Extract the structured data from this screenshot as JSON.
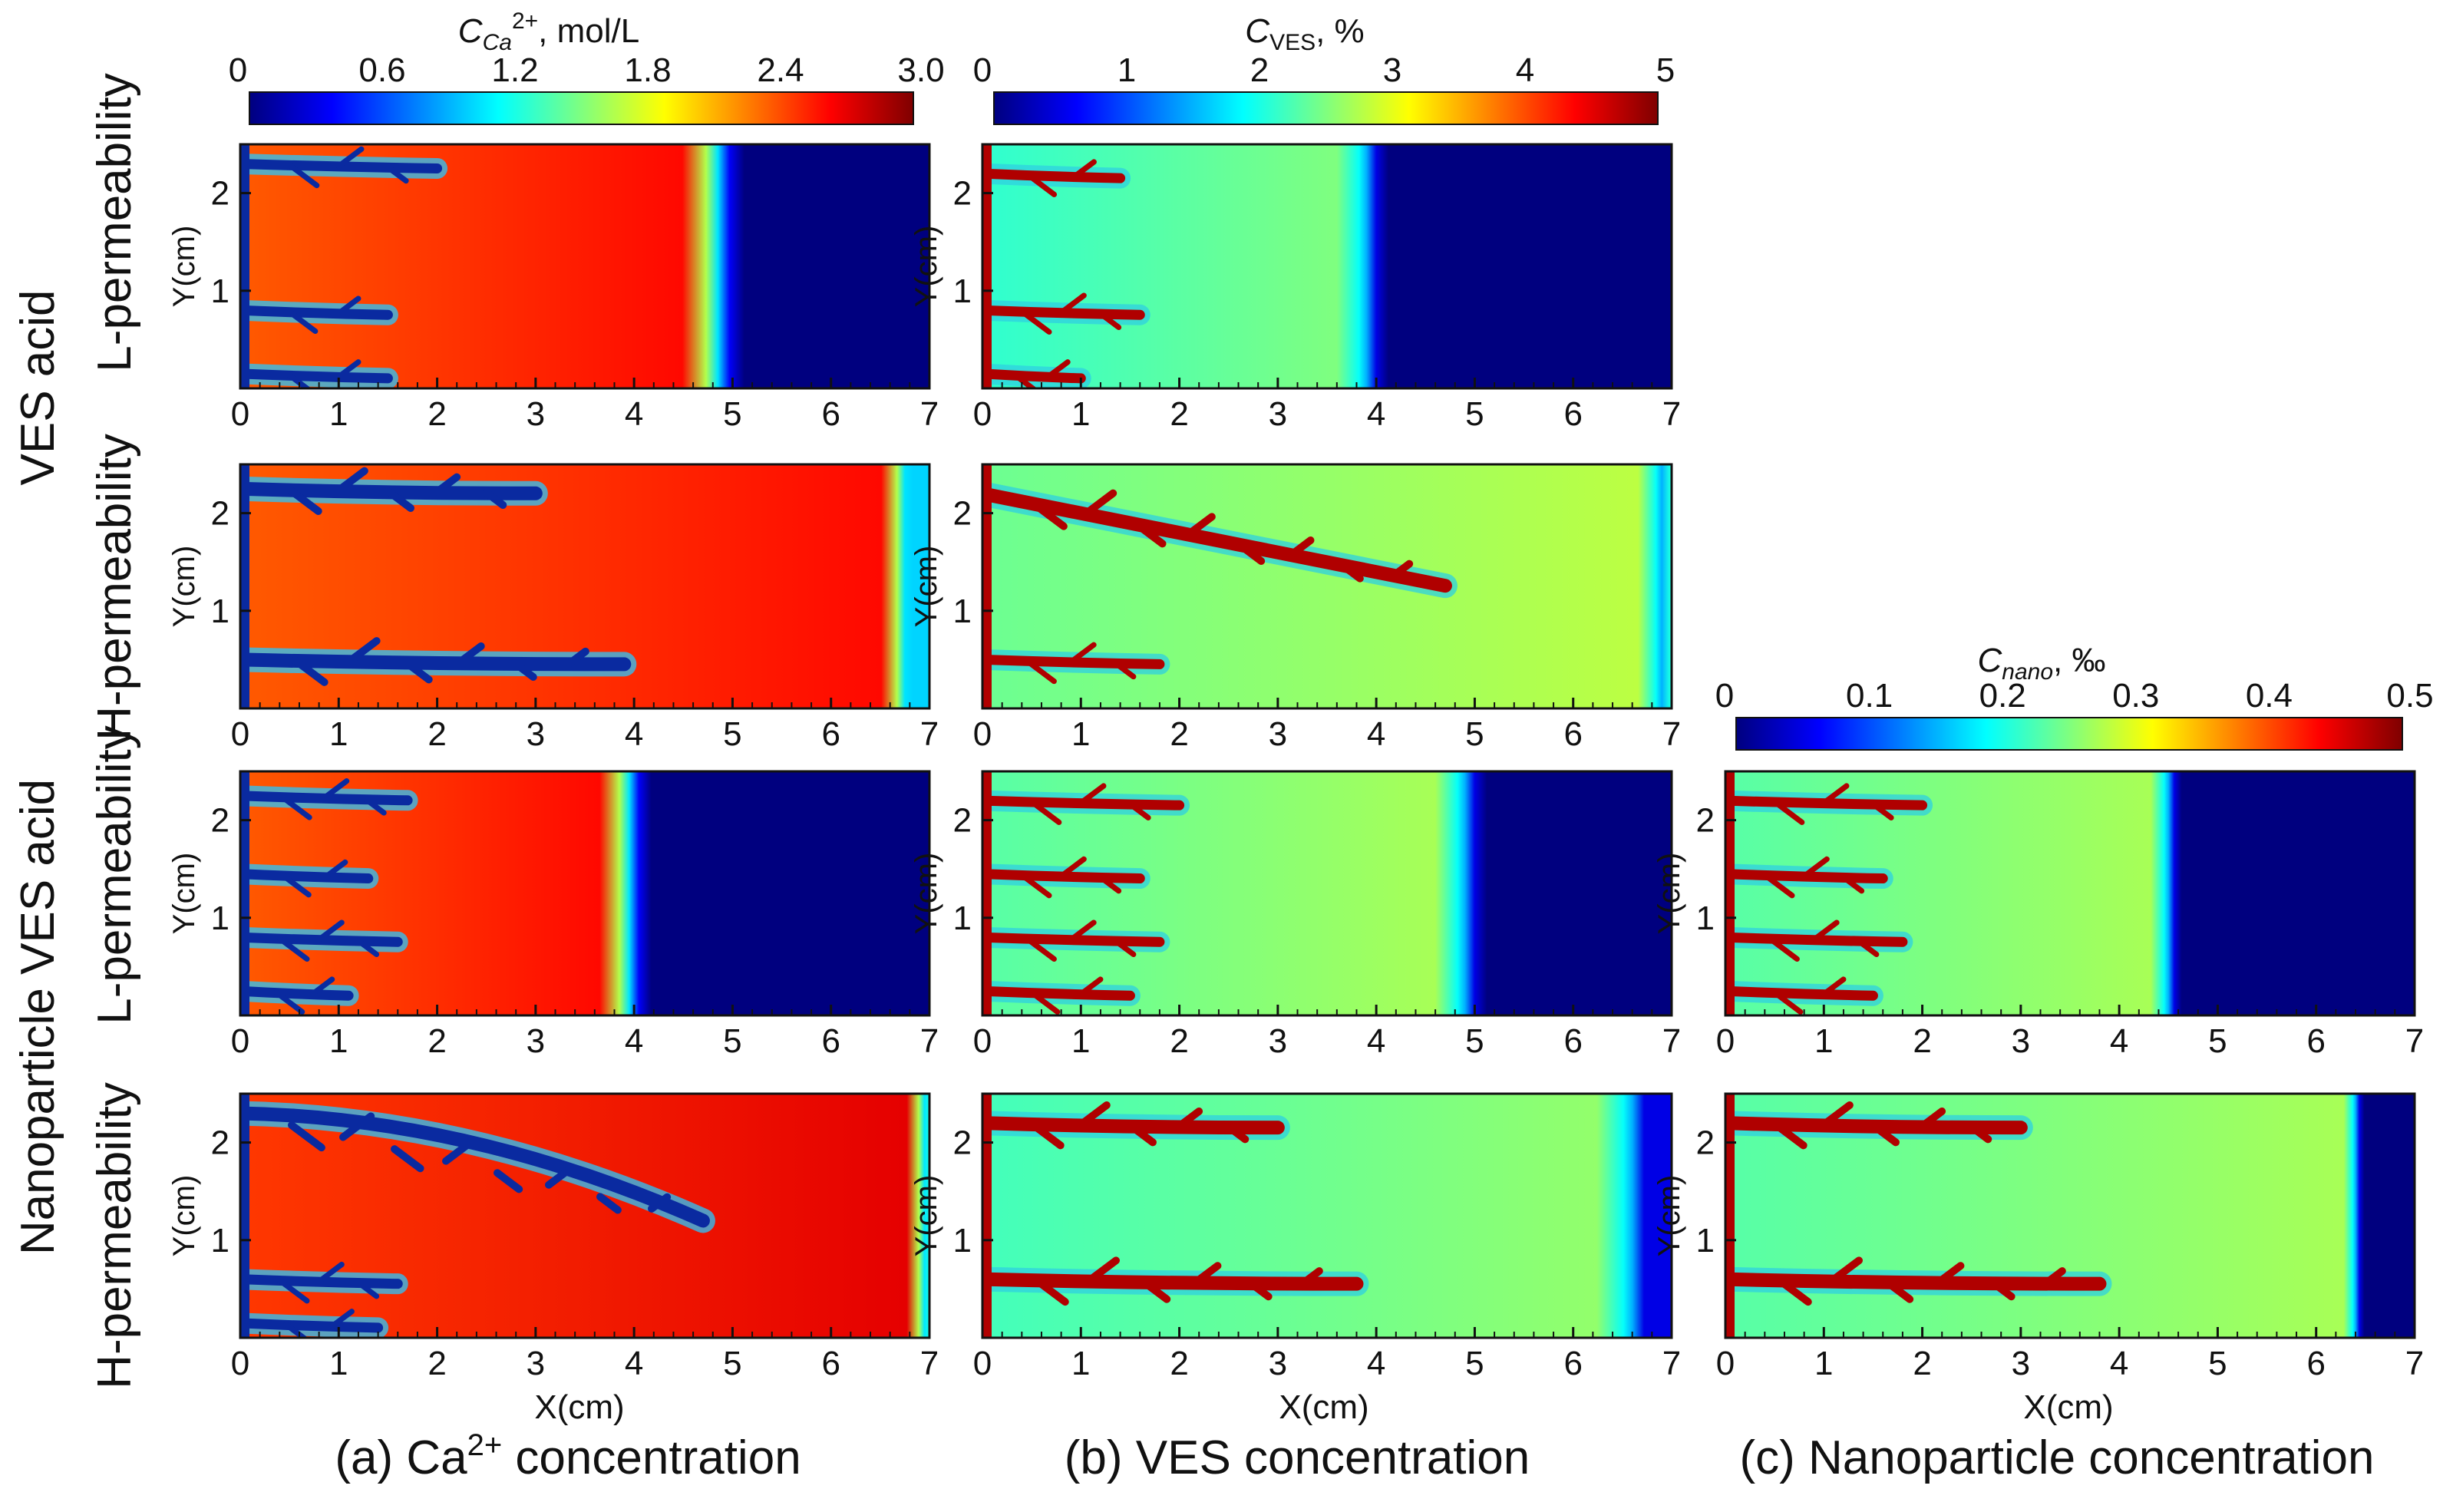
{
  "colors": {
    "jet": [
      "#00007f",
      "#0000ff",
      "#007fff",
      "#00ffff",
      "#7fff7f",
      "#ffff00",
      "#ff7f00",
      "#ff0000",
      "#7f0000"
    ],
    "front_blue": "#000080",
    "channel_red": "#b00000",
    "channel_blue": "#0a2aa0",
    "ca_background": "#f03c14",
    "ves_background": "#a6f060",
    "nano_background": "#a6f060",
    "frame": "#111111"
  },
  "row_labels": {
    "groups": [
      "VES acid",
      "Nanoparticle VES acid"
    ],
    "rows": [
      "L-permeability",
      "H-permeability",
      "L-permeability",
      "H-permeability"
    ]
  },
  "column_captions": [
    {
      "pre": "(a) Ca",
      "sup": "2+",
      "post": " concentration"
    },
    {
      "pre": "(b) VES concentration",
      "sup": "",
      "post": ""
    },
    {
      "pre": "(c) Nanoparticle concentration",
      "sup": "",
      "post": ""
    }
  ],
  "colorbars": [
    {
      "title_main": "C",
      "title_sub": "Ca",
      "title_sup": "2+",
      "title_rest": ", mol/L",
      "ticks": [
        "0",
        "0.6",
        "1.2",
        "1.8",
        "2.4",
        "3.0"
      ],
      "range": [
        0,
        3.0
      ]
    },
    {
      "title_main": "C",
      "title_sub": "VES",
      "title_sup": "",
      "title_rest": ", %",
      "ticks": [
        "0",
        "1",
        "2",
        "3",
        "4",
        "5"
      ],
      "range": [
        0,
        5
      ]
    },
    {
      "title_main": "C",
      "title_sub": "nano",
      "title_sup": "",
      "title_rest": ", ‰",
      "ticks": [
        "0",
        "0.1",
        "0.2",
        "0.3",
        "0.4",
        "0.5"
      ],
      "range": [
        0,
        0.5
      ]
    }
  ],
  "axes": {
    "xlabel": "X(cm)",
    "ylabel": "Y(cm)",
    "xticks": [
      "0",
      "1",
      "2",
      "3",
      "4",
      "5",
      "6",
      "7"
    ],
    "yticks": [
      "1",
      "2"
    ],
    "xlim": [
      0,
      7
    ],
    "ylim": [
      0,
      2.5
    ]
  },
  "chart_data": {
    "type": "heatmap",
    "description_type": "2D concentration fields with dissolution wormholes",
    "xlim": [
      0,
      7
    ],
    "ylim": [
      0,
      2.5
    ],
    "panels": [
      {
        "row": 0,
        "col": 0,
        "field": "Ca2+",
        "front_x": 4.85,
        "front_width": 0.3,
        "behind_value": 2.6,
        "ahead_value": 0.0,
        "wormhole_main_y": [
          2.3,
          0.8,
          0.15
        ],
        "wormhole_len": [
          2.0,
          1.5,
          1.5
        ],
        "main_branch": false
      },
      {
        "row": 0,
        "col": 1,
        "field": "VES",
        "front_x": 3.9,
        "front_width": 0.25,
        "behind_value": 2.5,
        "ahead_value": 0.0,
        "wormhole_main_y": [
          2.2,
          0.8,
          0.15
        ],
        "wormhole_len": [
          1.4,
          1.6,
          1.0
        ],
        "main_branch": false
      },
      {
        "row": 1,
        "col": 0,
        "field": "Ca2+",
        "front_x": 6.75,
        "front_width": 0.2,
        "behind_value": 2.6,
        "ahead_value": 1.0,
        "wormhole_main_y": [
          2.25,
          0.5
        ],
        "wormhole_len": [
          3.0,
          3.9
        ],
        "main_branch": true
      },
      {
        "row": 1,
        "col": 1,
        "field": "VES",
        "front_x": 6.9,
        "front_width": 0.2,
        "behind_value": 2.8,
        "ahead_value": 2.0,
        "wormhole_main_y": [
          2.2,
          0.5
        ],
        "wormhole_len": [
          4.7,
          1.8
        ],
        "main_branch": true
      },
      {
        "row": 2,
        "col": 0,
        "field": "Ca2+",
        "front_x": 3.95,
        "front_width": 0.25,
        "behind_value": 2.6,
        "ahead_value": 0.0,
        "wormhole_main_y": [
          2.25,
          1.45,
          0.8,
          0.25
        ],
        "wormhole_len": [
          1.7,
          1.3,
          1.6,
          1.1
        ],
        "main_branch": false
      },
      {
        "row": 2,
        "col": 1,
        "field": "VES",
        "front_x": 4.9,
        "front_width": 0.25,
        "behind_value": 2.7,
        "ahead_value": 0.0,
        "wormhole_main_y": [
          2.2,
          1.45,
          0.8,
          0.25
        ],
        "wormhole_len": [
          2.0,
          1.6,
          1.8,
          1.5
        ],
        "main_branch": false
      },
      {
        "row": 2,
        "col": 2,
        "field": "nano",
        "front_x": 4.5,
        "front_width": 0.15,
        "behind_value": 0.27,
        "ahead_value": 0.0,
        "wormhole_main_y": [
          2.2,
          1.45,
          0.8,
          0.25
        ],
        "wormhole_len": [
          2.0,
          1.6,
          1.8,
          1.5
        ],
        "main_branch": false
      },
      {
        "row": 3,
        "col": 0,
        "field": "Ca2+",
        "front_x": 6.95,
        "front_width": 0.15,
        "behind_value": 2.7,
        "ahead_value": 1.2,
        "wormhole_main_y": [
          2.3,
          0.6,
          0.15
        ],
        "wormhole_len": [
          4.7,
          1.6,
          1.4
        ],
        "main_branch": true
      },
      {
        "row": 3,
        "col": 1,
        "field": "VES",
        "front_x": 6.6,
        "front_width": 0.3,
        "behind_value": 2.6,
        "ahead_value": 0.5,
        "wormhole_main_y": [
          2.2,
          0.6
        ],
        "wormhole_len": [
          3.0,
          3.8
        ],
        "main_branch": true
      },
      {
        "row": 3,
        "col": 2,
        "field": "nano",
        "front_x": 6.4,
        "front_width": 0.1,
        "behind_value": 0.27,
        "ahead_value": 0.0,
        "wormhole_main_y": [
          2.2,
          0.6
        ],
        "wormhole_len": [
          3.0,
          3.8
        ],
        "main_branch": true
      }
    ]
  }
}
